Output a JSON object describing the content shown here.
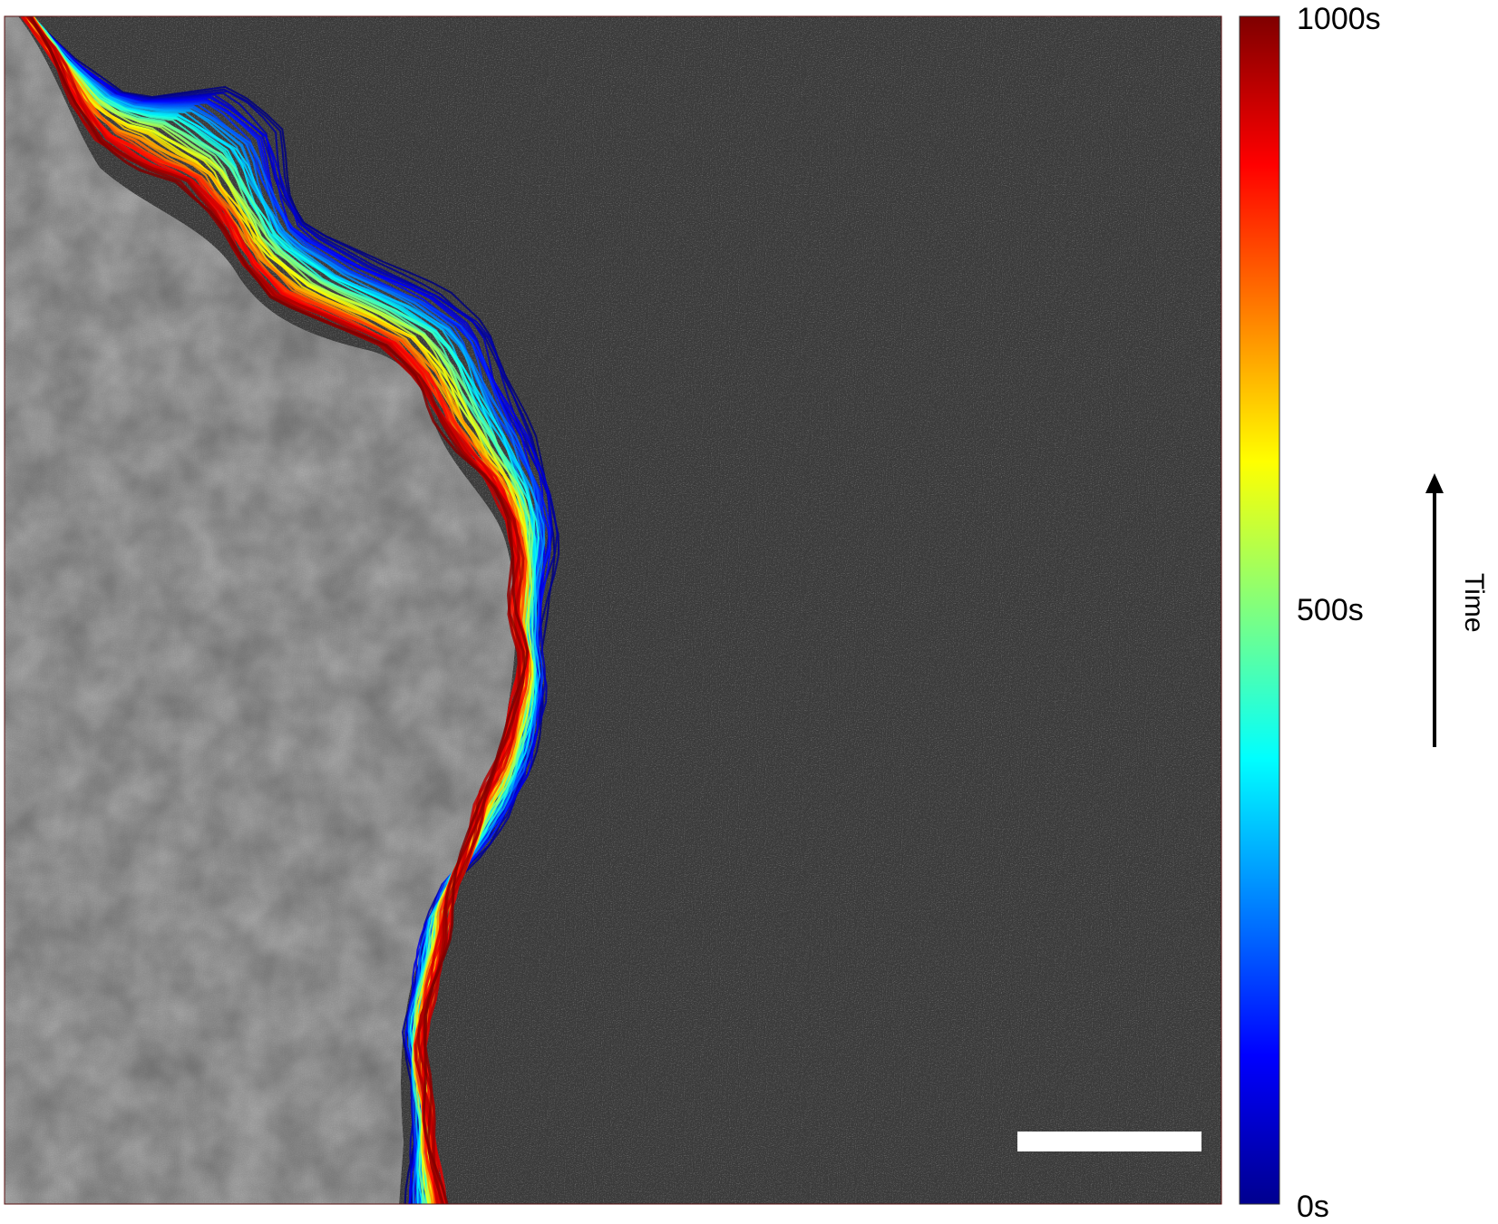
{
  "colorbar": {
    "top_label": "1000s",
    "mid_label": "500s",
    "bottom_label": "0s",
    "colormap": "jet",
    "stops": [
      "#00008f",
      "#0000ff",
      "#007fff",
      "#00ffff",
      "#7fff7f",
      "#ffff00",
      "#ff7f00",
      "#ff0000",
      "#7f0000"
    ]
  },
  "axis_indicator": {
    "label": "Time",
    "direction": "up"
  },
  "micrograph": {
    "background_color": "#3a3a3a",
    "grain_color": "#a8a8a8",
    "scale_bar_color": "#ffffff"
  }
}
